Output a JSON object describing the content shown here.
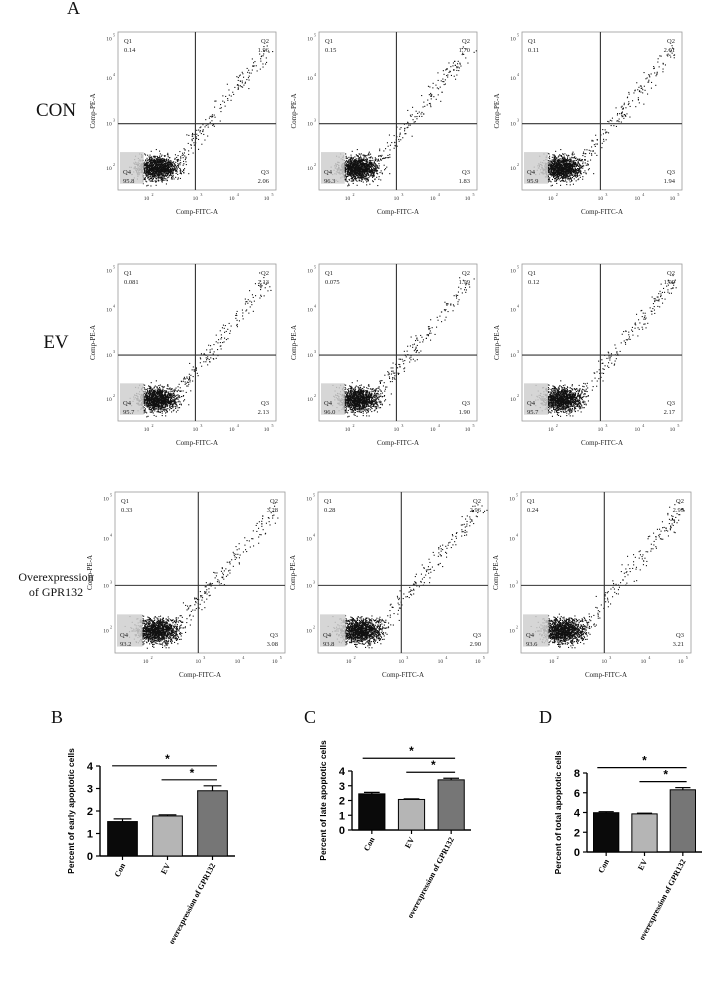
{
  "figure_labels": {
    "A": "A",
    "B": "B",
    "C": "C",
    "D": "D"
  },
  "row_labels": [
    "CON",
    "EV",
    "Overexpression\nof GPR132"
  ],
  "flow": {
    "x_axis_label": "Comp-FITC-A",
    "y_axis_label": "Comp-PE-A",
    "quadrant_names": [
      "Q1",
      "Q2",
      "Q3",
      "Q4"
    ],
    "tick_exponents": [
      "2",
      "3",
      "4",
      "5"
    ],
    "tick_base": "10",
    "colors": {
      "dots": "#111111",
      "gate_line": "#333333",
      "quad_box": "#cfcfcf"
    },
    "panels": [
      [
        {
          "q1": "0.14",
          "q2": "1.96",
          "q3": "2.06",
          "q4": "95.8"
        },
        {
          "q1": "0.15",
          "q2": "1.70",
          "q3": "1.83",
          "q4": "96.3"
        },
        {
          "q1": "0.11",
          "q2": "2.01",
          "q3": "1.94",
          "q4": "95.9"
        }
      ],
      [
        {
          "q1": "0.081",
          "q2": "2.13",
          "q3": "2.13",
          "q4": "95.7"
        },
        {
          "q1": "0.075",
          "q2": "1.99",
          "q3": "1.90",
          "q4": "96.0"
        },
        {
          "q1": "0.12",
          "q2": "1.99",
          "q3": "2.17",
          "q4": "95.7"
        }
      ],
      [
        {
          "q1": "0.33",
          "q2": "3.28",
          "q3": "3.08",
          "q4": "93.2"
        },
        {
          "q1": "0.28",
          "q2": "2.96",
          "q3": "2.90",
          "q4": "93.8"
        },
        {
          "q1": "0.24",
          "q2": "2.99",
          "q3": "3.21",
          "q4": "93.6"
        }
      ]
    ]
  },
  "chart_data": [
    {
      "type": "bar",
      "panel": "B",
      "categories": [
        "Con",
        "EV",
        "overexpression of GPR132"
      ],
      "values": [
        1.53,
        1.78,
        2.9
      ],
      "errors": [
        0.12,
        0.05,
        0.22
      ],
      "ylabel": "Percent of early apoptotic cells",
      "ylim": [
        0,
        4
      ],
      "yticks": [
        "0",
        "1",
        "2",
        "3",
        "4"
      ],
      "significance": [
        "*",
        "*"
      ],
      "bar_colors": [
        "#0a0a0a",
        "#b5b5b5",
        "#767676"
      ]
    },
    {
      "type": "bar",
      "panel": "C",
      "categories": [
        "Con",
        "EV",
        "overexpression of GPR132"
      ],
      "values": [
        2.45,
        2.07,
        3.4
      ],
      "errors": [
        0.1,
        0.04,
        0.11
      ],
      "ylabel": "Percent of late apoptotic cells",
      "ylim": [
        0,
        4
      ],
      "yticks": [
        "0",
        "1",
        "2",
        "3",
        "4"
      ],
      "significance": [
        "*",
        "*"
      ],
      "bar_colors": [
        "#0a0a0a",
        "#b5b5b5",
        "#767676"
      ]
    },
    {
      "type": "bar",
      "panel": "D",
      "categories": [
        "Con",
        "EV",
        "overexpression of GPR132"
      ],
      "values": [
        3.98,
        3.86,
        6.3
      ],
      "errors": [
        0.1,
        0.07,
        0.22
      ],
      "ylabel": "Percent of total apoptotic cells",
      "ylim": [
        0,
        8
      ],
      "yticks": [
        "0",
        "2",
        "4",
        "6",
        "8"
      ],
      "significance": [
        "*",
        "*"
      ],
      "bar_colors": [
        "#0a0a0a",
        "#b5b5b5",
        "#767676"
      ]
    }
  ]
}
